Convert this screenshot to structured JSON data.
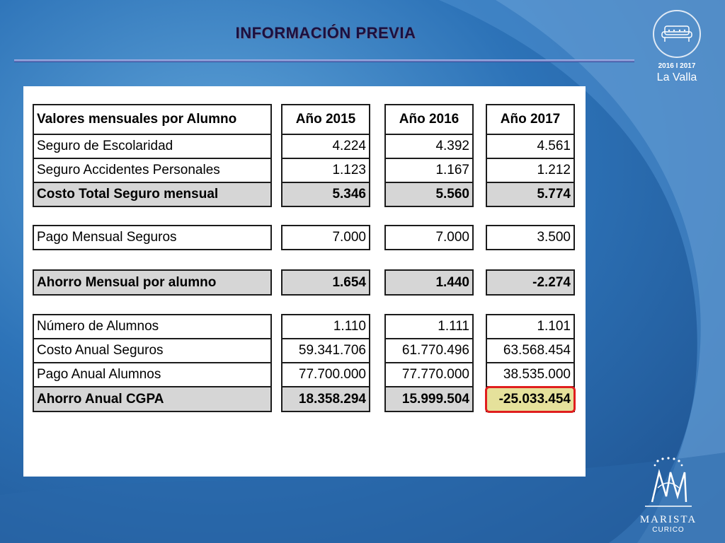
{
  "header": {
    "title": "INFORMACIÓN PREVIA"
  },
  "logo": {
    "years": "2016 I 2017",
    "place": "La Valla",
    "icon": "sofa-icon"
  },
  "footer_logo": {
    "name": "MARISTA",
    "city": "CURICO",
    "icon": "am-monogram-icon"
  },
  "table": {
    "headers": [
      "Valores mensuales por Alumno",
      "Año 2015",
      "Año  2016",
      "Año 2017"
    ],
    "rows": {
      "seguro_escolaridad": {
        "label": "Seguro de Escolaridad",
        "values": [
          "4.224",
          "4.392",
          "4.561"
        ]
      },
      "seguro_accidentes": {
        "label": "Seguro Accidentes Personales",
        "values": [
          "1.123",
          "1.167",
          "1.212"
        ]
      },
      "costo_total": {
        "label": "Costo Total Seguro mensual",
        "values": [
          "5.346",
          "5.560",
          "5.774"
        ]
      },
      "pago_mensual": {
        "label": "Pago Mensual Seguros",
        "values": [
          "7.000",
          "7.000",
          "3.500"
        ]
      },
      "ahorro_mensual": {
        "label": "Ahorro Mensual por alumno",
        "values": [
          "1.654",
          "1.440",
          "-2.274"
        ]
      },
      "numero_alumnos": {
        "label": "Número de Alumnos",
        "values": [
          "1.110",
          "1.111",
          "1.101"
        ]
      },
      "costo_anual": {
        "label": "Costo Anual Seguros",
        "values": [
          "59.341.706",
          "61.770.496",
          "63.568.454"
        ]
      },
      "pago_anual": {
        "label": "Pago Anual Alumnos",
        "values": [
          "77.700.000",
          "77.770.000",
          "38.535.000"
        ]
      },
      "ahorro_anual": {
        "label": "Ahorro Anual CGPA",
        "values": [
          "18.358.294",
          "15.999.504",
          "-25.033.454"
        ]
      }
    }
  },
  "colors": {
    "highlight": "#e5e19b",
    "highlight_border": "#e01e1e",
    "subtotal_fill": "#d6d6d6"
  }
}
